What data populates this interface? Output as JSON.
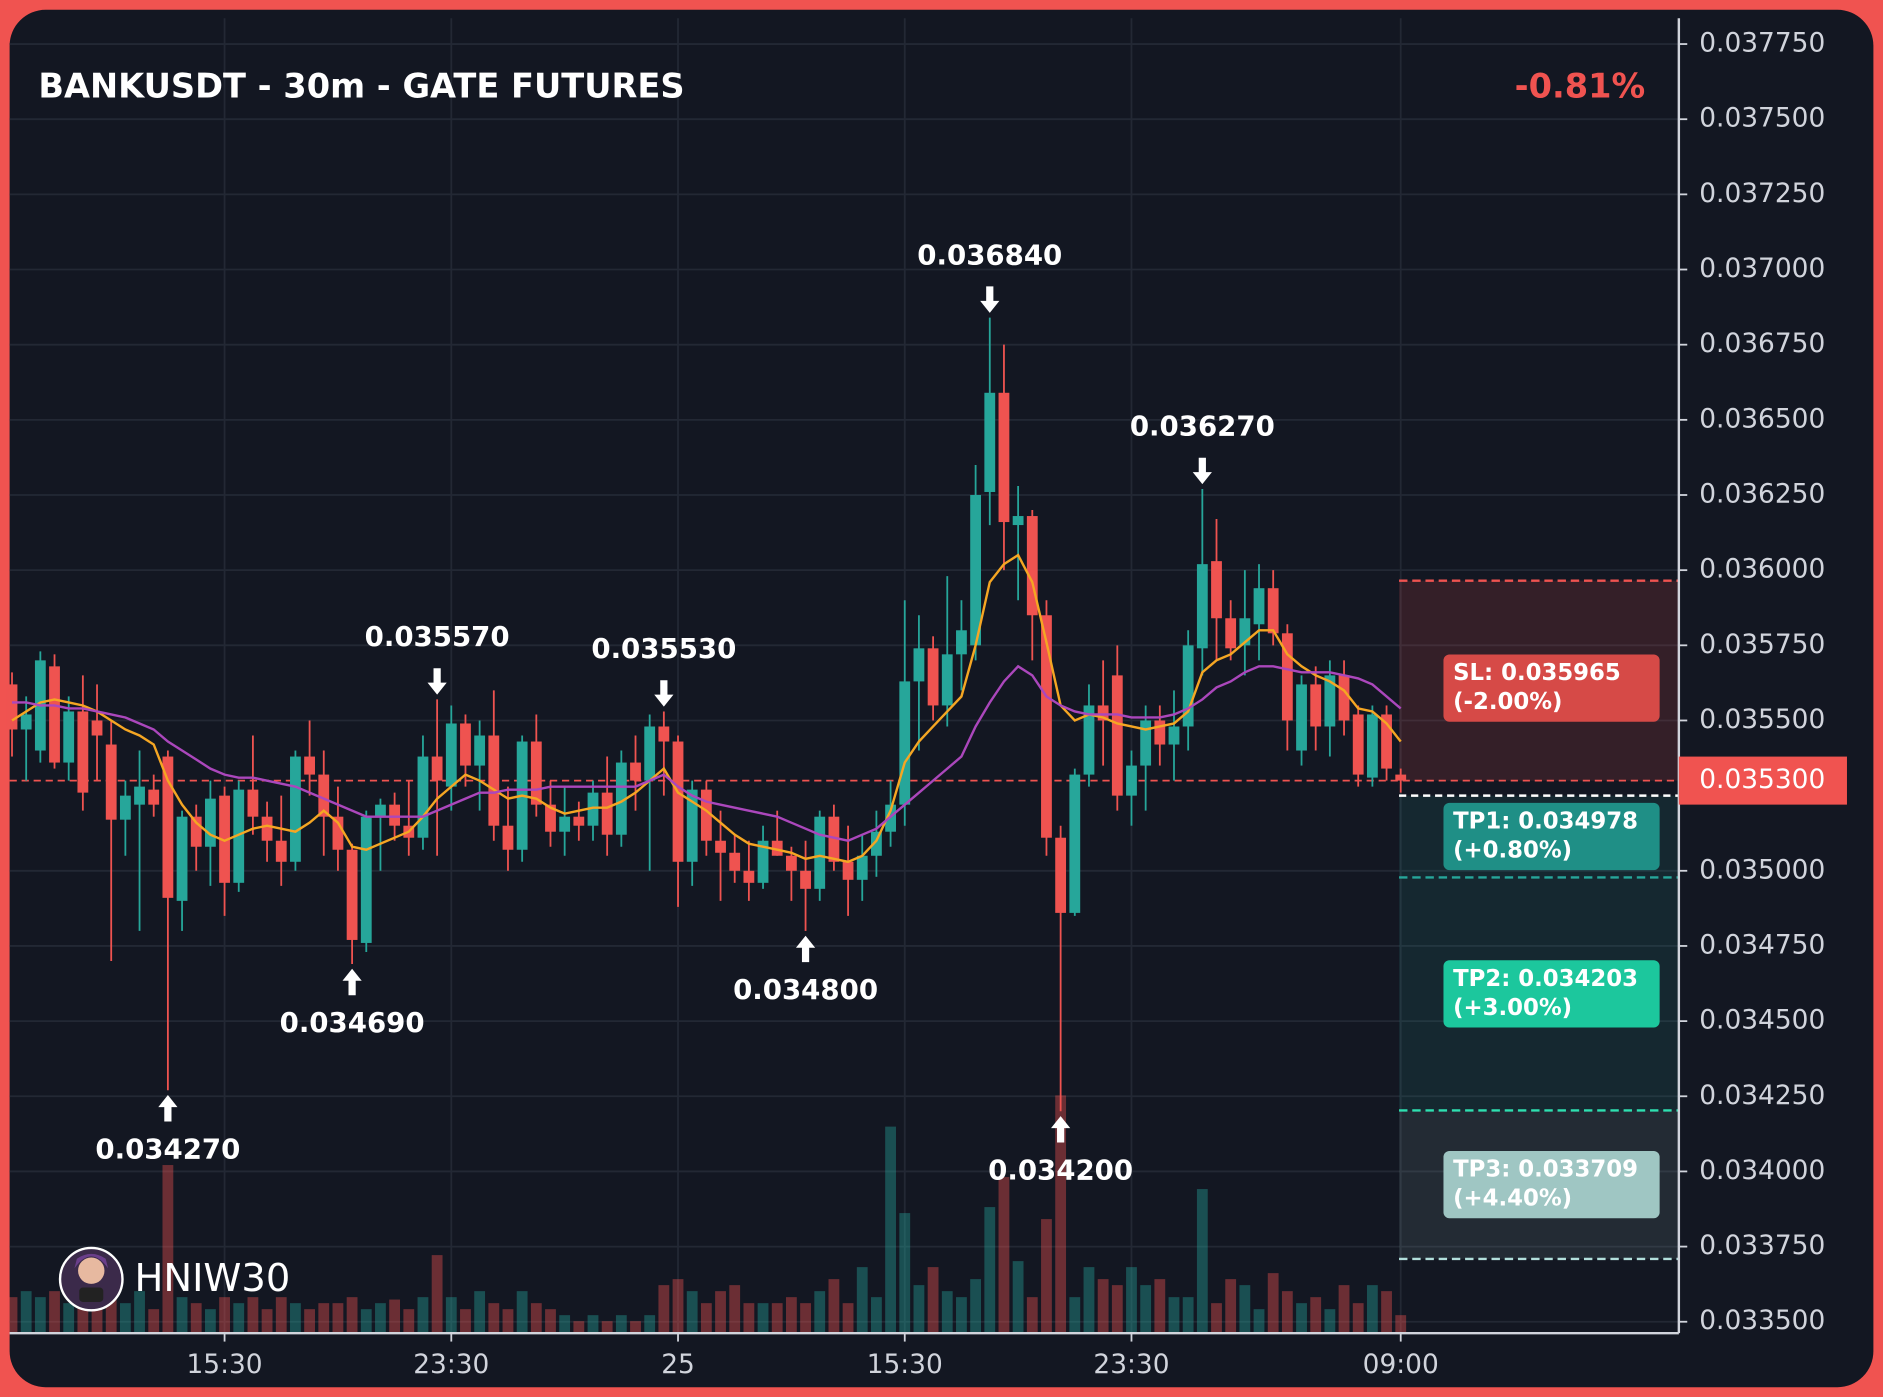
{
  "chart_data": {
    "type": "candlestick",
    "title": "BANKUSDT - 30m - GATE FUTURES",
    "change_label": "-0.81%",
    "watermark": "HNIW30",
    "categories": [
      null,
      null,
      null,
      null,
      null,
      null,
      null,
      null,
      null,
      null,
      null,
      null,
      null,
      null,
      null,
      "15:30",
      null,
      null,
      null,
      null,
      null,
      null,
      null,
      null,
      null,
      null,
      null,
      null,
      null,
      null,
      null,
      "23:30",
      null,
      null,
      null,
      null,
      null,
      null,
      null,
      null,
      null,
      null,
      null,
      null,
      null,
      null,
      null,
      "25",
      null,
      null,
      null,
      null,
      null,
      null,
      null,
      null,
      null,
      null,
      null,
      null,
      null,
      null,
      null,
      "15:30",
      null,
      null,
      null,
      null,
      null,
      null,
      null,
      null,
      null,
      null,
      null,
      null,
      null,
      null,
      null,
      "23:30",
      null,
      null,
      null,
      null,
      null,
      null,
      null,
      null,
      null,
      null,
      null,
      null,
      null,
      null,
      null,
      null,
      null,
      null,
      "09:00"
    ],
    "ohlc": [
      [
        0.03562,
        0.03566,
        0.03538,
        0.03547
      ],
      [
        0.03547,
        0.03558,
        0.0353,
        0.03552
      ],
      [
        0.0354,
        0.03573,
        0.03536,
        0.0357
      ],
      [
        0.03568,
        0.03572,
        0.03534,
        0.03536
      ],
      [
        0.03536,
        0.03558,
        0.0353,
        0.03553
      ],
      [
        0.03553,
        0.03565,
        0.0352,
        0.03526
      ],
      [
        0.0355,
        0.03562,
        0.0353,
        0.03545
      ],
      [
        0.03542,
        0.0355,
        0.0347,
        0.03517
      ],
      [
        0.03517,
        0.0353,
        0.03505,
        0.03525
      ],
      [
        0.03522,
        0.0354,
        0.0348,
        0.03528
      ],
      [
        0.03527,
        0.03532,
        0.03518,
        0.03522
      ],
      [
        0.03538,
        0.0354,
        0.03427,
        0.03491
      ],
      [
        0.0349,
        0.0352,
        0.0348,
        0.03518
      ],
      [
        0.03518,
        0.03522,
        0.035,
        0.03508
      ],
      [
        0.03508,
        0.0353,
        0.03495,
        0.03524
      ],
      [
        0.03525,
        0.03528,
        0.03485,
        0.03496
      ],
      [
        0.03496,
        0.0353,
        0.03493,
        0.03527
      ],
      [
        0.03527,
        0.03545,
        0.03512,
        0.03518
      ],
      [
        0.03518,
        0.03523,
        0.03503,
        0.0351
      ],
      [
        0.0351,
        0.03525,
        0.03495,
        0.03503
      ],
      [
        0.03503,
        0.0354,
        0.035,
        0.03538
      ],
      [
        0.03538,
        0.0355,
        0.03525,
        0.03532
      ],
      [
        0.03532,
        0.0354,
        0.03505,
        0.03518
      ],
      [
        0.03518,
        0.03528,
        0.035,
        0.03507
      ],
      [
        0.03507,
        0.03509,
        0.03469,
        0.03477
      ],
      [
        0.03476,
        0.0352,
        0.03473,
        0.03518
      ],
      [
        0.03518,
        0.03524,
        0.035,
        0.03522
      ],
      [
        0.03522,
        0.03526,
        0.0351,
        0.03515
      ],
      [
        0.03515,
        0.0353,
        0.03505,
        0.03511
      ],
      [
        0.03511,
        0.03545,
        0.03507,
        0.03538
      ],
      [
        0.03538,
        0.03557,
        0.03505,
        0.0353
      ],
      [
        0.03528,
        0.03555,
        0.0352,
        0.03549
      ],
      [
        0.03549,
        0.03552,
        0.03528,
        0.03535
      ],
      [
        0.03535,
        0.0355,
        0.0352,
        0.03545
      ],
      [
        0.03545,
        0.0356,
        0.0351,
        0.03515
      ],
      [
        0.03515,
        0.03528,
        0.035,
        0.03507
      ],
      [
        0.03507,
        0.03545,
        0.03503,
        0.03543
      ],
      [
        0.03543,
        0.03552,
        0.03518,
        0.03522
      ],
      [
        0.03522,
        0.0353,
        0.03508,
        0.03513
      ],
      [
        0.03513,
        0.03528,
        0.03505,
        0.03518
      ],
      [
        0.03518,
        0.03523,
        0.0351,
        0.03515
      ],
      [
        0.03515,
        0.0353,
        0.0351,
        0.03526
      ],
      [
        0.03526,
        0.03538,
        0.03505,
        0.03512
      ],
      [
        0.03512,
        0.0354,
        0.03508,
        0.03536
      ],
      [
        0.03536,
        0.03545,
        0.0352,
        0.0353
      ],
      [
        0.0353,
        0.03552,
        0.035,
        0.03548
      ],
      [
        0.03548,
        0.03553,
        0.03525,
        0.03543
      ],
      [
        0.03543,
        0.03545,
        0.03488,
        0.03503
      ],
      [
        0.03503,
        0.0353,
        0.03495,
        0.03527
      ],
      [
        0.03527,
        0.0353,
        0.03505,
        0.0351
      ],
      [
        0.0351,
        0.0352,
        0.0349,
        0.03506
      ],
      [
        0.03506,
        0.03512,
        0.03496,
        0.035
      ],
      [
        0.035,
        0.0351,
        0.0349,
        0.03496
      ],
      [
        0.03496,
        0.03515,
        0.03494,
        0.0351
      ],
      [
        0.0351,
        0.0352,
        0.03505,
        0.03505
      ],
      [
        0.03505,
        0.03508,
        0.0349,
        0.035
      ],
      [
        0.035,
        0.0351,
        0.0348,
        0.03494
      ],
      [
        0.03494,
        0.0352,
        0.0349,
        0.03518
      ],
      [
        0.03518,
        0.03522,
        0.035,
        0.03503
      ],
      [
        0.03503,
        0.03515,
        0.03485,
        0.03497
      ],
      [
        0.03497,
        0.03512,
        0.0349,
        0.03505
      ],
      [
        0.03505,
        0.0352,
        0.03498,
        0.03513
      ],
      [
        0.03513,
        0.0353,
        0.03508,
        0.03522
      ],
      [
        0.03522,
        0.0359,
        0.03515,
        0.03563
      ],
      [
        0.03563,
        0.03585,
        0.0354,
        0.03574
      ],
      [
        0.03574,
        0.03578,
        0.0355,
        0.03555
      ],
      [
        0.03555,
        0.03598,
        0.03548,
        0.03572
      ],
      [
        0.03572,
        0.0359,
        0.0356,
        0.0358
      ],
      [
        0.03575,
        0.03635,
        0.0357,
        0.03625
      ],
      [
        0.03626,
        0.03684,
        0.03615,
        0.03659
      ],
      [
        0.03659,
        0.03675,
        0.036,
        0.03616
      ],
      [
        0.03615,
        0.03628,
        0.0359,
        0.03618
      ],
      [
        0.03618,
        0.0362,
        0.0357,
        0.03585
      ],
      [
        0.03585,
        0.0359,
        0.03505,
        0.03511
      ],
      [
        0.03511,
        0.03515,
        0.0342,
        0.03486
      ],
      [
        0.03486,
        0.03534,
        0.03485,
        0.03532
      ],
      [
        0.03532,
        0.03562,
        0.03528,
        0.03555
      ],
      [
        0.03555,
        0.0357,
        0.03535,
        0.0355
      ],
      [
        0.03565,
        0.03575,
        0.0352,
        0.03525
      ],
      [
        0.03525,
        0.0354,
        0.03515,
        0.03535
      ],
      [
        0.03535,
        0.03555,
        0.0352,
        0.0355
      ],
      [
        0.0355,
        0.03555,
        0.03535,
        0.03542
      ],
      [
        0.03542,
        0.0356,
        0.0353,
        0.03548
      ],
      [
        0.03548,
        0.0358,
        0.0354,
        0.03575
      ],
      [
        0.03574,
        0.03627,
        0.03565,
        0.03602
      ],
      [
        0.03603,
        0.03617,
        0.0357,
        0.03584
      ],
      [
        0.03584,
        0.0359,
        0.0357,
        0.03574
      ],
      [
        0.03575,
        0.036,
        0.03565,
        0.03584
      ],
      [
        0.03582,
        0.03602,
        0.0357,
        0.03594
      ],
      [
        0.03594,
        0.036,
        0.03575,
        0.03579
      ],
      [
        0.03579,
        0.03582,
        0.0354,
        0.0355
      ],
      [
        0.0354,
        0.03565,
        0.03535,
        0.03562
      ],
      [
        0.03562,
        0.03568,
        0.0354,
        0.03548
      ],
      [
        0.03548,
        0.0357,
        0.03538,
        0.03565
      ],
      [
        0.03565,
        0.0357,
        0.03545,
        0.0355
      ],
      [
        0.03552,
        0.03555,
        0.03528,
        0.03532
      ],
      [
        0.03531,
        0.03555,
        0.03528,
        0.03552
      ],
      [
        0.03552,
        0.03555,
        0.0353,
        0.03534
      ],
      [
        0.03532,
        0.03534,
        0.03526,
        0.0353
      ]
    ],
    "volume": [
      30,
      35,
      30,
      35,
      25,
      30,
      20,
      30,
      25,
      35,
      20,
      140,
      30,
      25,
      20,
      30,
      25,
      30,
      20,
      30,
      25,
      20,
      25,
      25,
      30,
      20,
      25,
      28,
      20,
      30,
      65,
      30,
      20,
      35,
      25,
      20,
      35,
      25,
      20,
      15,
      10,
      15,
      10,
      15,
      10,
      15,
      40,
      45,
      35,
      25,
      35,
      40,
      25,
      25,
      25,
      30,
      25,
      35,
      45,
      25,
      55,
      30,
      172,
      100,
      40,
      55,
      35,
      30,
      45,
      105,
      130,
      60,
      30,
      95,
      198,
      30,
      55,
      45,
      40,
      55,
      40,
      45,
      30,
      30,
      120,
      25,
      45,
      40,
      20,
      50,
      35,
      25,
      30,
      20,
      40,
      25,
      40,
      35,
      15
    ],
    "ma_lines": [
      {
        "color": "#f5a623",
        "values": [
          0.0355,
          0.03553,
          0.03556,
          0.03557,
          0.03556,
          0.03555,
          0.03553,
          0.0355,
          0.03547,
          0.03545,
          0.03542,
          0.0353,
          0.03522,
          0.03516,
          0.03512,
          0.0351,
          0.03512,
          0.03514,
          0.03515,
          0.03514,
          0.03513,
          0.03516,
          0.0352,
          0.03516,
          0.03508,
          0.03507,
          0.03509,
          0.03511,
          0.03513,
          0.03518,
          0.03524,
          0.03528,
          0.03532,
          0.0353,
          0.03527,
          0.03524,
          0.03525,
          0.03524,
          0.03521,
          0.03519,
          0.0352,
          0.03521,
          0.03521,
          0.03523,
          0.03526,
          0.0353,
          0.03534,
          0.03526,
          0.03523,
          0.0352,
          0.03516,
          0.03512,
          0.03509,
          0.03508,
          0.03507,
          0.03506,
          0.03504,
          0.03505,
          0.03504,
          0.03503,
          0.03505,
          0.0351,
          0.0352,
          0.03536,
          0.03543,
          0.03548,
          0.03553,
          0.03558,
          0.03575,
          0.03596,
          0.03602,
          0.03605,
          0.03596,
          0.03576,
          0.03555,
          0.0355,
          0.03552,
          0.03551,
          0.03549,
          0.03548,
          0.03547,
          0.03548,
          0.03549,
          0.03553,
          0.03566,
          0.0357,
          0.03572,
          0.03576,
          0.0358,
          0.0358,
          0.03572,
          0.03568,
          0.03565,
          0.03563,
          0.0356,
          0.03554,
          0.03553,
          0.03549,
          0.03543
        ]
      },
      {
        "color": "#ab47bc",
        "values": [
          0.03556,
          0.03556,
          0.03555,
          0.03555,
          0.03554,
          0.03554,
          0.03553,
          0.03552,
          0.03551,
          0.03549,
          0.03547,
          0.03543,
          0.0354,
          0.03537,
          0.03534,
          0.03532,
          0.03531,
          0.03531,
          0.0353,
          0.03529,
          0.03528,
          0.03526,
          0.03524,
          0.03522,
          0.0352,
          0.03518,
          0.03518,
          0.03518,
          0.03518,
          0.03518,
          0.0352,
          0.03522,
          0.03524,
          0.03526,
          0.03526,
          0.03527,
          0.03527,
          0.03527,
          0.03528,
          0.03528,
          0.03528,
          0.03528,
          0.03528,
          0.03528,
          0.03528,
          0.0353,
          0.03532,
          0.03528,
          0.03525,
          0.03523,
          0.03522,
          0.03521,
          0.0352,
          0.03519,
          0.03518,
          0.03516,
          0.03514,
          0.03512,
          0.03511,
          0.0351,
          0.03512,
          0.03514,
          0.03518,
          0.03522,
          0.03526,
          0.0353,
          0.03534,
          0.03538,
          0.03548,
          0.03556,
          0.03563,
          0.03568,
          0.03565,
          0.03558,
          0.03555,
          0.03553,
          0.03552,
          0.03552,
          0.03552,
          0.03551,
          0.03551,
          0.03551,
          0.03552,
          0.03554,
          0.03557,
          0.03561,
          0.03563,
          0.03566,
          0.03568,
          0.03568,
          0.03567,
          0.03566,
          0.03566,
          0.03566,
          0.03565,
          0.03564,
          0.03562,
          0.03558,
          0.03554
        ]
      }
    ],
    "annotations": [
      {
        "x": 11,
        "value": 0.03427,
        "label": "0.034270"
      },
      {
        "x": 24,
        "value": 0.03469,
        "label": "0.034690"
      },
      {
        "x": 30,
        "value": 0.03557,
        "label": "0.035570"
      },
      {
        "x": 46,
        "value": 0.03553,
        "label": "0.035530"
      },
      {
        "x": 56,
        "value": 0.0348,
        "label": "0.034800"
      },
      {
        "x": 69,
        "value": 0.03684,
        "label": "0.036840"
      },
      {
        "x": 74,
        "value": 0.0342,
        "label": "0.034200"
      },
      {
        "x": 84,
        "value": 0.03627,
        "label": "0.036270"
      }
    ],
    "entry": 0.03525,
    "current_price": {
      "value": 0.0353,
      "label": "0.035300"
    },
    "levels": [
      {
        "label": "SL: 0.035965",
        "note": "(-2.00%)",
        "value": 0.035965,
        "color": "#ef5350",
        "box_color": "#d64a47"
      },
      {
        "label": "TP1: 0.034978",
        "note": "(+0.80%)",
        "value": 0.034978,
        "color": "#26a69a",
        "box_color": "#1f8f86"
      },
      {
        "label": "TP2: 0.034203",
        "note": "(+3.00%)",
        "value": 0.034203,
        "color": "#2ee0b0",
        "box_color": "#1cc79d"
      },
      {
        "label": "TP3: 0.033709",
        "note": "(+4.40%)",
        "value": 0.033709,
        "color": "#b2dfdb",
        "box_color": "#9fc6c3"
      }
    ],
    "up_color": "#26a69a",
    "down_color": "#ef5350",
    "ylim": [
      0.033462,
      0.037836
    ],
    "yticks": [
      {
        "value": 0.0335,
        "label": "0.033500"
      },
      {
        "value": 0.03375,
        "label": "0.033750"
      },
      {
        "value": 0.034,
        "label": "0.034000"
      },
      {
        "value": 0.03425,
        "label": "0.034250"
      },
      {
        "value": 0.0345,
        "label": "0.034500"
      },
      {
        "value": 0.03475,
        "label": "0.034750"
      },
      {
        "value": 0.035,
        "label": "0.035000"
      },
      {
        "value": 0.0355,
        "label": "0.035500"
      },
      {
        "value": 0.03575,
        "label": "0.035750"
      },
      {
        "value": 0.036,
        "label": "0.036000"
      },
      {
        "value": 0.03625,
        "label": "0.036250"
      },
      {
        "value": 0.0365,
        "label": "0.036500"
      },
      {
        "value": 0.03675,
        "label": "0.036750"
      },
      {
        "value": 0.037,
        "label": "0.037000"
      },
      {
        "value": 0.03725,
        "label": "0.037250"
      },
      {
        "value": 0.0375,
        "label": "0.037500"
      },
      {
        "value": 0.03775,
        "label": "0.037750"
      }
    ],
    "grid": true
  }
}
